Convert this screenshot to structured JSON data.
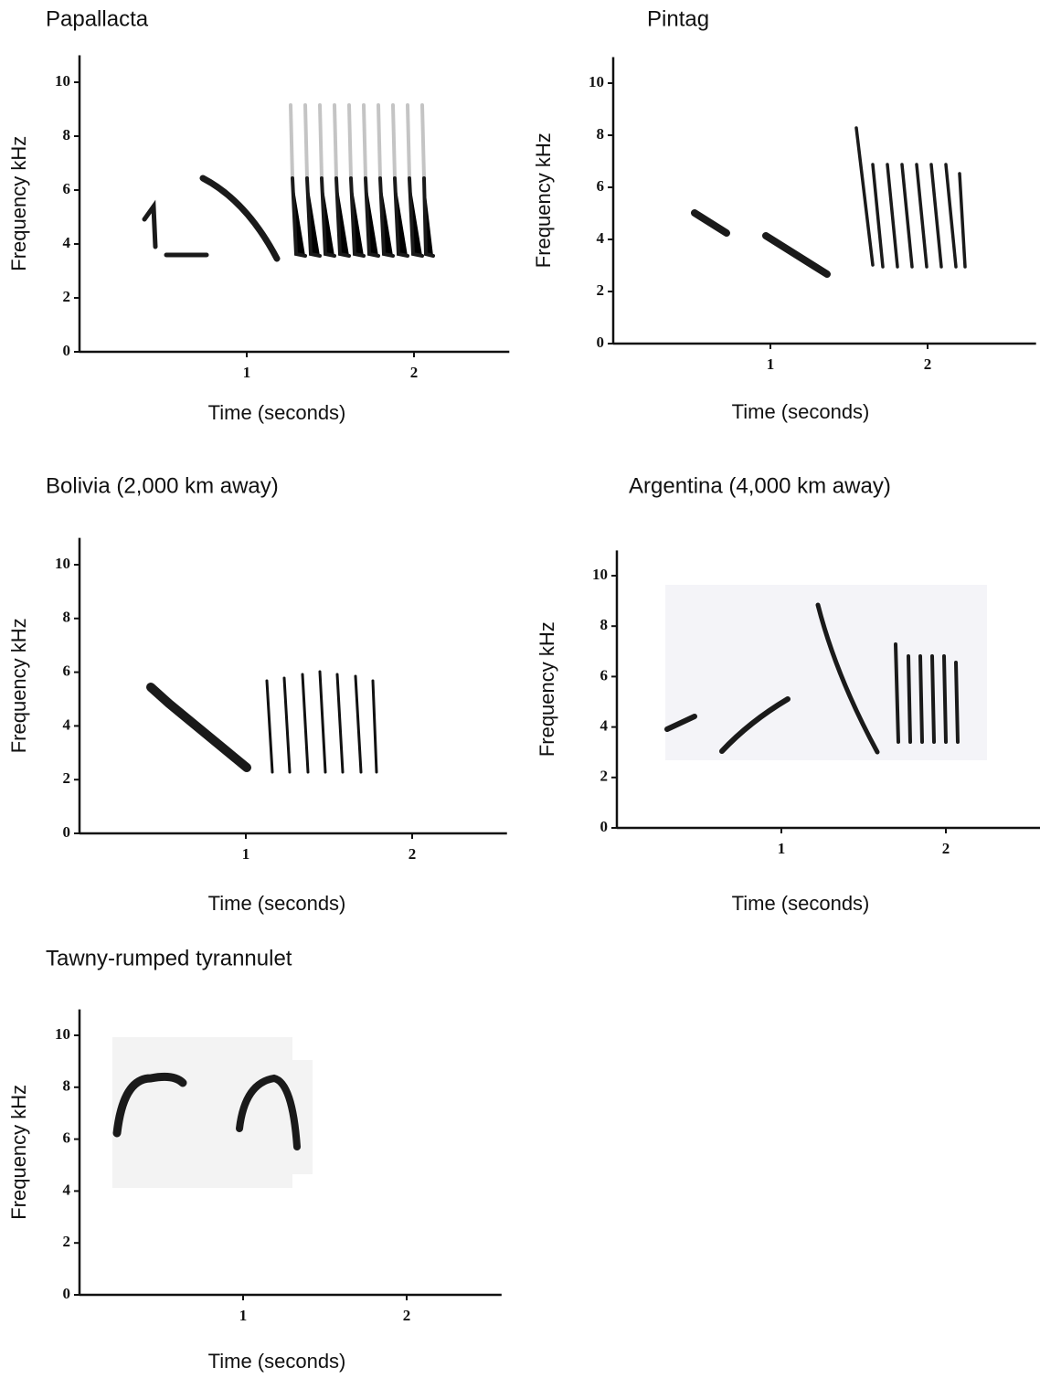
{
  "chart_data": [
    {
      "type": "spectrogram",
      "title": "Papallacta",
      "xlabel": "Time (seconds)",
      "ylabel": "Frequency kHz",
      "xlim": [
        0,
        2.57
      ],
      "xticks": [
        1,
        2
      ],
      "ylim": [
        0,
        11
      ],
      "yticks": [
        0,
        2,
        4,
        6,
        8,
        10
      ]
    },
    {
      "type": "spectrogram",
      "title": "Pintag",
      "xlabel": "Time (seconds)",
      "ylabel": "Frequency kHz",
      "xlim": [
        0,
        2.69
      ],
      "xticks": [
        1,
        2
      ],
      "ylim": [
        0,
        11
      ],
      "yticks": [
        0,
        2,
        4,
        6,
        8,
        10
      ]
    },
    {
      "type": "spectrogram",
      "title": "Bolivia (2,000 km away)",
      "xlabel": "Time (seconds)",
      "ylabel": "Frequency kHz",
      "xlim": [
        0,
        2.57
      ],
      "xticks": [
        1,
        2
      ],
      "ylim": [
        0,
        11
      ],
      "yticks": [
        0,
        2,
        4,
        6,
        8,
        10
      ]
    },
    {
      "type": "spectrogram",
      "title": "Argentina (4,000 km away)",
      "xlabel": "Time (seconds)",
      "ylabel": "Frequency kHz",
      "xlim": [
        0,
        2.58
      ],
      "xticks": [
        1,
        2
      ],
      "ylim": [
        0,
        11
      ],
      "yticks": [
        0,
        2,
        4,
        6,
        8,
        10
      ]
    },
    {
      "type": "spectrogram",
      "title": "Tawny-rumped tyrannulet",
      "xlabel": "Time (seconds)",
      "ylabel": "Frequency kHz",
      "xlim": [
        0,
        2.58
      ],
      "xticks": [
        1,
        2
      ],
      "ylim": [
        0,
        11
      ],
      "yticks": [
        0,
        2,
        4,
        6,
        8,
        10
      ]
    }
  ]
}
